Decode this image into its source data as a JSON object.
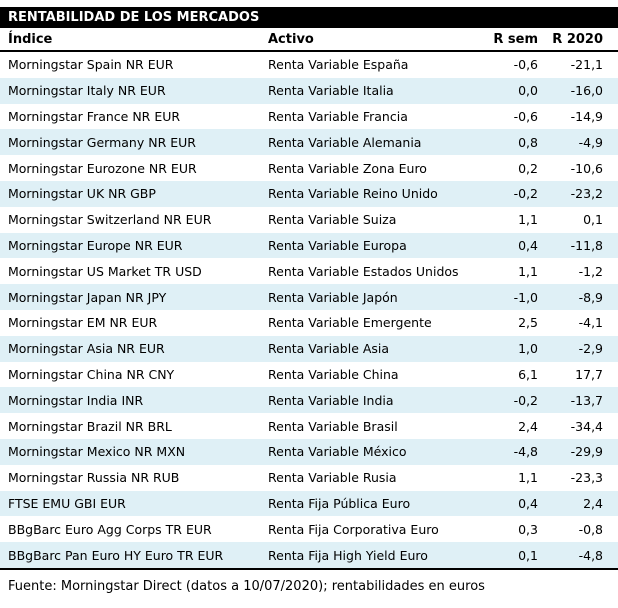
{
  "title": "RENTABILIDAD DE LOS MERCADOS",
  "footer": "Fuente: Morningstar Direct (datos a 10/07/2020); rentabilidades en euros",
  "colors": {
    "title_bar_bg": "#000000",
    "title_bar_text": "#ffffff",
    "row_alt_bg": "#dff0f6",
    "text": "#000000",
    "rule": "#000000"
  },
  "chart_data": {
    "type": "table",
    "title": "RENTABILIDAD DE LOS MERCADOS",
    "columns": [
      "Índice",
      "Activo",
      "R sem",
      "R 2020"
    ],
    "rows": [
      [
        "Morningstar Spain NR EUR",
        "Renta Variable España",
        "-0,6",
        "-21,1"
      ],
      [
        "Morningstar Italy NR EUR",
        "Renta Variable Italia",
        "0,0",
        "-16,0"
      ],
      [
        "Morningstar France NR EUR",
        "Renta Variable Francia",
        "-0,6",
        "-14,9"
      ],
      [
        "Morningstar Germany NR EUR",
        "Renta Variable Alemania",
        "0,8",
        "-4,9"
      ],
      [
        "Morningstar Eurozone NR EUR",
        "Renta Variable Zona Euro",
        "0,2",
        "-10,6"
      ],
      [
        "Morningstar UK NR GBP",
        "Renta Variable Reino Unido",
        "-0,2",
        "-23,2"
      ],
      [
        "Morningstar Switzerland NR EUR",
        "Renta Variable Suiza",
        "1,1",
        "0,1"
      ],
      [
        "Morningstar Europe NR EUR",
        "Renta Variable Europa",
        "0,4",
        "-11,8"
      ],
      [
        "Morningstar US Market TR USD",
        "Renta Variable Estados Unidos",
        "1,1",
        "-1,2"
      ],
      [
        "Morningstar Japan NR JPY",
        "Renta Variable Japón",
        "-1,0",
        "-8,9"
      ],
      [
        "Morningstar EM NR EUR",
        "Renta Variable Emergente",
        "2,5",
        "-4,1"
      ],
      [
        "Morningstar Asia NR EUR",
        "Renta Variable Asia",
        "1,0",
        "-2,9"
      ],
      [
        "Morningstar China NR CNY",
        "Renta Variable China",
        "6,1",
        "17,7"
      ],
      [
        "Morningstar India INR",
        "Renta Variable India",
        "-0,2",
        "-13,7"
      ],
      [
        "Morningstar Brazil NR BRL",
        "Renta Variable Brasil",
        "2,4",
        "-34,4"
      ],
      [
        "Morningstar Mexico NR MXN",
        "Renta Variable México",
        "-4,8",
        "-29,9"
      ],
      [
        "Morningstar Russia NR RUB",
        "Renta Variable Rusia",
        "1,1",
        "-23,3"
      ],
      [
        "FTSE EMU GBI EUR",
        "Renta Fija Pública Euro",
        "0,4",
        "2,4"
      ],
      [
        "BBgBarc Euro Agg Corps TR EUR",
        "Renta Fija Corporativa Euro",
        "0,3",
        "-0,8"
      ],
      [
        "BBgBarc Pan Euro HY Euro TR EUR",
        "Renta Fija High Yield Euro",
        "0,1",
        "-4,8"
      ]
    ],
    "footnote": "Fuente: Morningstar Direct (datos a 10/07/2020); rentabilidades en euros",
    "layout": {
      "row_striping": "even-rows-pale-blue",
      "value_alignment": "right",
      "decimal_separator": "comma"
    }
  }
}
